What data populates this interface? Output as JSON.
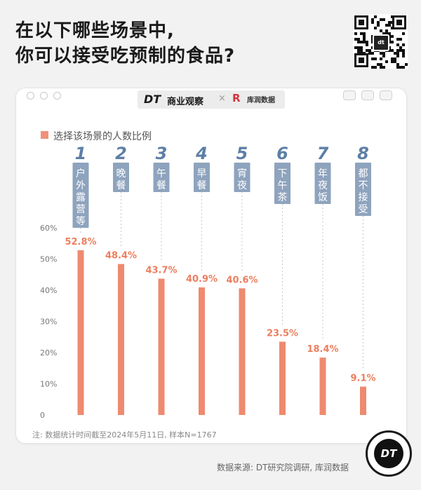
{
  "header": {
    "title_line1": "在以下哪些场景中,",
    "title_line2": "你可以接受吃预制的食品?"
  },
  "qr": {
    "label": "dt"
  },
  "brand": {
    "dt": "DT",
    "name": "商业观察",
    "separator": "×",
    "partner": "库润数据"
  },
  "legend": {
    "label": "选择该场景的人数比例"
  },
  "colors": {
    "bar": "#ee8a6f",
    "category_box": "#8ea3bd",
    "value_text": "#ec7f5f",
    "number": "#5d7fa6"
  },
  "chart_data": {
    "type": "bar",
    "categories": [
      "户外露营等",
      "晚餐",
      "午餐",
      "早餐",
      "宵夜",
      "下午茶",
      "年夜饭",
      "都不接受"
    ],
    "index_labels": [
      "1",
      "2",
      "3",
      "4",
      "5",
      "6",
      "7",
      "8"
    ],
    "values": [
      52.8,
      48.4,
      43.7,
      40.9,
      40.6,
      23.5,
      18.4,
      9.1
    ],
    "value_labels": [
      "52.8%",
      "48.4%",
      "43.7%",
      "40.9%",
      "40.6%",
      "23.5%",
      "18.4%",
      "9.1%"
    ],
    "series": [
      {
        "name": "选择该场景的人数比例",
        "values": [
          52.8,
          48.4,
          43.7,
          40.9,
          40.6,
          23.5,
          18.4,
          9.1
        ]
      }
    ],
    "ylim": [
      0,
      60
    ],
    "ytick_labels": [
      "0",
      "10%",
      "20%",
      "30%",
      "40%",
      "50%",
      "60%"
    ],
    "grid": false,
    "legend_position": "top-left"
  },
  "footer": {
    "note": "注: 数据统计时间截至2024年5月11日, 样本N=1767",
    "source": "数据来源: DT研究院调研, 库润数据",
    "logo": "DT"
  }
}
